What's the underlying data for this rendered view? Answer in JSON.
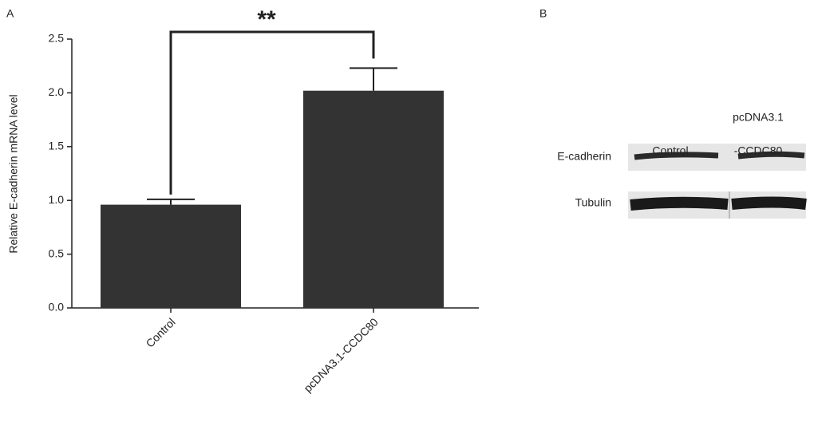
{
  "chart_data": {
    "type": "bar",
    "panel": "A",
    "ylabel": "Relative E-cadherin mRNA level",
    "categories": [
      "Control",
      "pcDNA3.1-CCDC80"
    ],
    "values": [
      0.96,
      2.02
    ],
    "errors": [
      0.05,
      0.21
    ],
    "color": "#333333",
    "ylim": [
      0,
      2.5
    ],
    "yticks": [
      {
        "value": 0,
        "label": "0.0"
      },
      0.5,
      {
        "value": 1,
        "label": "1.0"
      },
      1.5,
      {
        "value": 2,
        "label": "2.0"
      },
      2.5
    ],
    "annotation": "**"
  },
  "blot": {
    "panel": "B",
    "lanes": [
      [
        "Control"
      ],
      [
        "pcDNA3.1",
        "-CCDC80"
      ]
    ],
    "rows": [
      "E-cadherin",
      "Tubulin"
    ]
  }
}
